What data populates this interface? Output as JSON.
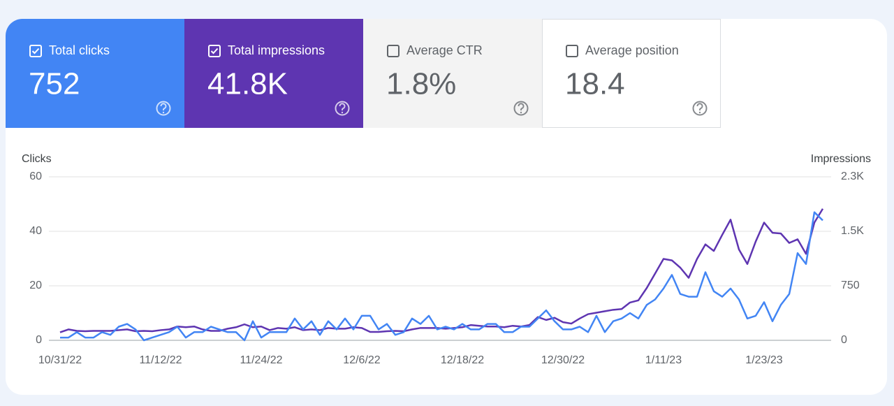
{
  "cards": [
    {
      "label": "Total clicks",
      "value": "752",
      "checked": true,
      "bg": "#4285f4",
      "fg": "#ffffff"
    },
    {
      "label": "Total impressions",
      "value": "41.8K",
      "checked": true,
      "bg": "#5e35b1",
      "fg": "#ffffff"
    },
    {
      "label": "Average CTR",
      "value": "1.8%",
      "checked": false,
      "bg": "#f3f3f3",
      "fg": "#5f6368"
    },
    {
      "label": "Average position",
      "value": "18.4",
      "checked": false,
      "bg": "#ffffff",
      "fg": "#5f6368"
    }
  ],
  "chart_data": {
    "type": "line",
    "ylabel": "Clicks",
    "y2label": "Impressions",
    "categories": [
      "10/31/22",
      null,
      null,
      null,
      null,
      null,
      null,
      null,
      null,
      null,
      null,
      null,
      "11/12/22",
      null,
      null,
      null,
      null,
      null,
      null,
      null,
      null,
      null,
      null,
      null,
      "11/24/22",
      null,
      null,
      null,
      null,
      null,
      null,
      null,
      null,
      null,
      null,
      null,
      "12/6/22",
      null,
      null,
      null,
      null,
      null,
      null,
      null,
      null,
      null,
      null,
      null,
      "12/18/22",
      null,
      null,
      null,
      null,
      null,
      null,
      null,
      null,
      null,
      null,
      null,
      "12/30/22",
      null,
      null,
      null,
      null,
      null,
      null,
      null,
      null,
      null,
      null,
      null,
      "1/11/23",
      null,
      null,
      null,
      null,
      null,
      null,
      null,
      null,
      null,
      null,
      null,
      "1/23/23",
      null,
      null,
      null,
      null,
      null,
      null,
      null
    ],
    "series": [
      {
        "color": "#4285f4",
        "axis": "y",
        "values": [
          1,
          1,
          3,
          1,
          1,
          3,
          2,
          5,
          6,
          4,
          0,
          1,
          2,
          3,
          5,
          1,
          3,
          3,
          5,
          4,
          3,
          3,
          0,
          7,
          1,
          3,
          3,
          3,
          8,
          4,
          7,
          2,
          7,
          4,
          8,
          4,
          9,
          9,
          4,
          6,
          2,
          3,
          8,
          6,
          9,
          4,
          5,
          4,
          6,
          4,
          4,
          6,
          6,
          3,
          3,
          5,
          5,
          8,
          11,
          7,
          4,
          4,
          5,
          3,
          9,
          3,
          7,
          8,
          10,
          8,
          13,
          15,
          19,
          24,
          17,
          16,
          16,
          25,
          18,
          16,
          19,
          15,
          8,
          9,
          14,
          7,
          13,
          17,
          32,
          28,
          47,
          44
        ]
      },
      {
        "color": "#5e35b1",
        "axis": "y2",
        "values": [
          110,
          150,
          130,
          125,
          130,
          130,
          130,
          140,
          150,
          125,
          130,
          125,
          140,
          150,
          190,
          180,
          190,
          150,
          130,
          130,
          160,
          180,
          220,
          180,
          190,
          140,
          170,
          160,
          180,
          140,
          150,
          140,
          170,
          160,
          160,
          180,
          170,
          115,
          115,
          125,
          130,
          125,
          150,
          170,
          170,
          170,
          160,
          170,
          180,
          210,
          200,
          190,
          190,
          180,
          200,
          190,
          210,
          320,
          280,
          310,
          250,
          230,
          300,
          360,
          380,
          400,
          420,
          430,
          520,
          550,
          720,
          920,
          1120,
          1100,
          1000,
          860,
          1120,
          1320,
          1230,
          1450,
          1660,
          1250,
          1050,
          1360,
          1620,
          1480,
          1470,
          1340,
          1390,
          1190,
          1620,
          1810
        ]
      }
    ],
    "ylim": [
      0,
      60
    ],
    "yticks": [
      0,
      20,
      40,
      60
    ],
    "y2lim": [
      0,
      2250
    ],
    "y2ticks": [
      0,
      750,
      {
        "value": 1500,
        "label": "1.5K"
      },
      {
        "value": 2250,
        "label": "2.3K"
      }
    ],
    "grid": true
  }
}
